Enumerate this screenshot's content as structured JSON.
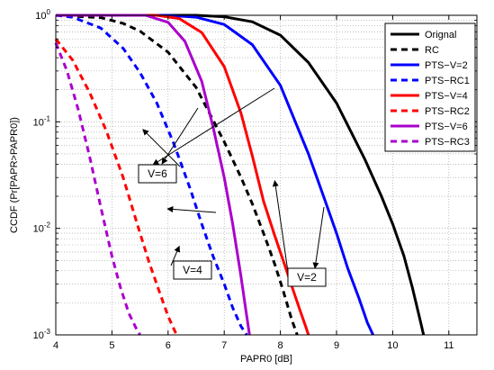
{
  "chart_data": {
    "type": "line",
    "xlabel": "PAPR0 [dB]",
    "ylabel": "CCDF (Pr[PAPR>PAPR0])",
    "xlim": [
      4,
      11.5
    ],
    "ylim": [
      0.001,
      1
    ],
    "yscale": "log",
    "grid": true,
    "legend_position": "top-right",
    "xticks": [
      "4",
      "5",
      "6",
      "7",
      "8",
      "9",
      "10",
      "11"
    ],
    "yticks": [
      {
        "value": 1,
        "base": "10",
        "exp": "0"
      },
      {
        "value": 0.1,
        "base": "10",
        "exp": "-1"
      },
      {
        "value": 0.01,
        "base": "10",
        "exp": "-2"
      },
      {
        "value": 0.001,
        "base": "10",
        "exp": "-3"
      }
    ],
    "series": [
      {
        "name": "Orignal",
        "color": "#000000",
        "dash": false,
        "x": [
          4.0,
          6.5,
          7.0,
          7.5,
          8.0,
          8.5,
          9.0,
          9.5,
          9.8,
          10.0,
          10.2,
          10.35,
          10.5,
          10.55
        ],
        "y": [
          1.0,
          1.0,
          0.97,
          0.87,
          0.65,
          0.36,
          0.15,
          0.045,
          0.02,
          0.011,
          0.0055,
          0.0028,
          0.0013,
          0.001
        ]
      },
      {
        "name": "RC",
        "color": "#000000",
        "dash": true,
        "x": [
          4.0,
          4.8,
          5.2,
          5.5,
          6.0,
          6.5,
          7.0,
          7.3,
          7.5,
          7.7,
          7.9,
          8.05,
          8.2,
          8.3
        ],
        "y": [
          1.0,
          0.95,
          0.84,
          0.71,
          0.45,
          0.21,
          0.065,
          0.03,
          0.017,
          0.009,
          0.0046,
          0.0026,
          0.0014,
          0.001
        ]
      },
      {
        "name": "PTS−V=2",
        "color": "#0000ff",
        "dash": false,
        "x": [
          4.0,
          6.0,
          6.5,
          7.0,
          7.5,
          8.0,
          8.5,
          8.8,
          9.0,
          9.2,
          9.4,
          9.55,
          9.65
        ],
        "y": [
          1.0,
          1.0,
          0.96,
          0.82,
          0.53,
          0.22,
          0.05,
          0.018,
          0.009,
          0.0042,
          0.0022,
          0.0013,
          0.001
        ]
      },
      {
        "name": "PTS−RC1",
        "color": "#0000ff",
        "dash": true,
        "x": [
          4.0,
          4.3,
          4.8,
          5.2,
          5.5,
          5.8,
          6.1,
          6.4,
          6.6,
          6.8,
          7.0,
          7.15,
          7.3,
          7.4
        ],
        "y": [
          1.0,
          0.96,
          0.76,
          0.49,
          0.29,
          0.15,
          0.063,
          0.023,
          0.011,
          0.0055,
          0.003,
          0.0018,
          0.0012,
          0.001
        ]
      },
      {
        "name": "PTS−V=4",
        "color": "#ff0000",
        "dash": false,
        "x": [
          4.0,
          5.8,
          6.2,
          6.6,
          7.0,
          7.3,
          7.5,
          7.7,
          7.9,
          8.05,
          8.2,
          8.35,
          8.45,
          8.5
        ],
        "y": [
          1.0,
          1.0,
          0.93,
          0.69,
          0.33,
          0.12,
          0.048,
          0.018,
          0.0085,
          0.005,
          0.0029,
          0.0017,
          0.0012,
          0.001
        ]
      },
      {
        "name": "PTS−RC2",
        "color": "#ff0000",
        "dash": true,
        "x": [
          4.0,
          4.3,
          4.6,
          4.9,
          5.2,
          5.45,
          5.65,
          5.85,
          6.0,
          6.15
        ],
        "y": [
          0.6,
          0.38,
          0.19,
          0.082,
          0.03,
          0.011,
          0.005,
          0.0025,
          0.0015,
          0.001
        ]
      },
      {
        "name": "PTS−V=6",
        "color": "#aa00cc",
        "dash": false,
        "x": [
          4.0,
          5.6,
          6.0,
          6.3,
          6.6,
          6.8,
          7.0,
          7.15,
          7.3,
          7.4,
          7.45
        ],
        "y": [
          1.0,
          1.0,
          0.86,
          0.57,
          0.24,
          0.09,
          0.03,
          0.011,
          0.0035,
          0.0015,
          0.001
        ]
      },
      {
        "name": "PTS−RC3",
        "color": "#aa00cc",
        "dash": true,
        "x": [
          4.0,
          4.2,
          4.4,
          4.6,
          4.8,
          5.0,
          5.15,
          5.3,
          5.45,
          5.5
        ],
        "y": [
          0.55,
          0.3,
          0.13,
          0.048,
          0.016,
          0.0055,
          0.0028,
          0.0016,
          0.0011,
          0.001
        ]
      }
    ],
    "annotations": [
      {
        "text": "V=6",
        "target_x": 5.55,
        "target_y": 0.085
      },
      {
        "text": "V=2",
        "target_x": 7.9,
        "target_y": 0.028
      },
      {
        "text": "V=4",
        "target_x": 6.2,
        "target_y": 0.0068
      }
    ]
  }
}
